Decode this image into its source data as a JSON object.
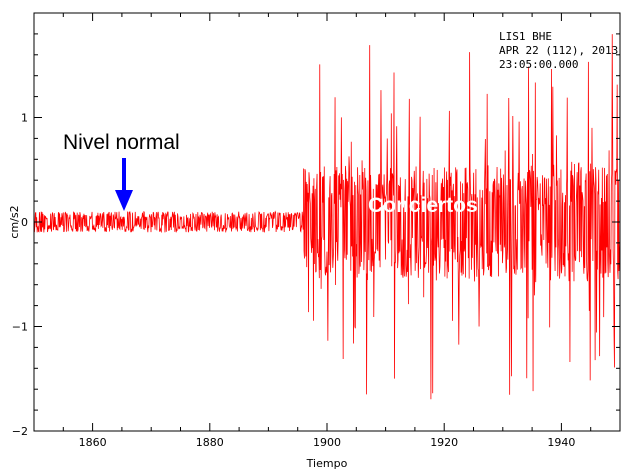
{
  "chart_data": {
    "type": "line",
    "station_header": [
      "LIS1  BHE",
      "APR 22 (112), 2013",
      "23:05:00.000"
    ],
    "xlabel": "Tiempo",
    "ylabel": "cm/s2",
    "xlim": [
      1850,
      1950
    ],
    "ylim": [
      -2,
      2
    ],
    "x_ticks": [
      1860,
      1880,
      1900,
      1920,
      1940
    ],
    "x_tick_labels": [
      "1860",
      "1880",
      "1900",
      "1920",
      "1940"
    ],
    "y_ticks": [
      -2,
      -1,
      0,
      1
    ],
    "y_tick_labels": [
      "−2",
      "−1",
      "0",
      "1"
    ],
    "grid": false,
    "series": [
      {
        "color": "#ff0000",
        "segments": [
          {
            "x_start": 1850,
            "x_end": 1896,
            "amplitude": 0.1
          },
          {
            "x_start": 1896,
            "x_end": 1936,
            "amplitude": 1.7
          },
          {
            "x_start": 1936,
            "x_end": 1938,
            "amplitude": 0.45
          },
          {
            "x_start": 1938,
            "x_end": 1950,
            "amplitude": 1.8
          }
        ]
      }
    ],
    "annotations": [
      {
        "text": "Nivel normal",
        "arrow_to": {
          "x": 1865.5,
          "y": 0
        },
        "color": "#000000",
        "arrow_color": "#0000ff"
      },
      {
        "text": "Conciertos",
        "at": {
          "x": 1917,
          "y": 0.08
        },
        "color": "#ffffff"
      }
    ]
  }
}
